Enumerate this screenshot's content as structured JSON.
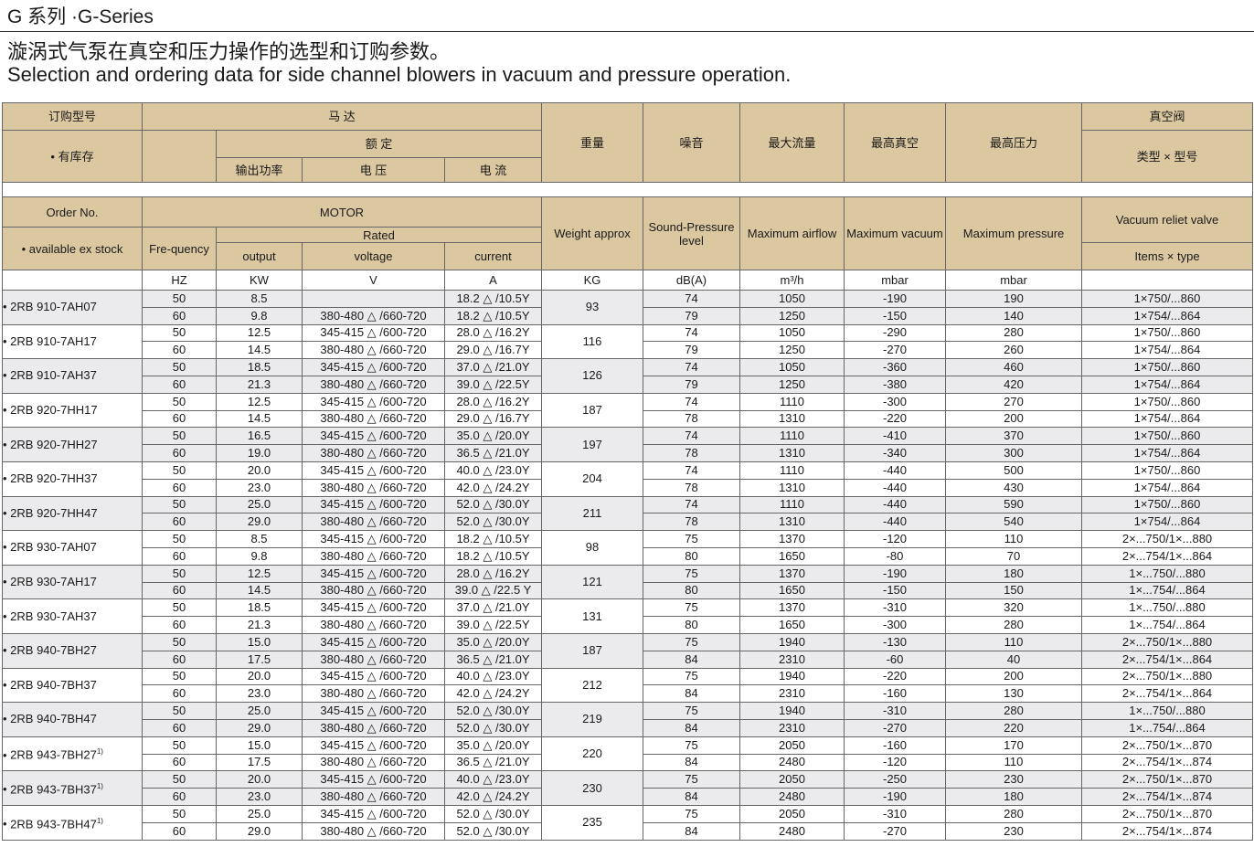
{
  "header": {
    "title": "G 系列 ·G-Series",
    "subtitle_cn": "漩涡式气泵在真空和压力操作的选型和订购参数。",
    "subtitle_en": "Selection and ordering data for side channel blowers in vacuum and pressure operation."
  },
  "header_cn": {
    "order_no": "订购型号",
    "stock": "有库存",
    "motor": "马 达",
    "rated": "额 定",
    "output": "输出功率",
    "voltage": "电 压",
    "current": "电 流",
    "weight": "重量",
    "noise": "噪音",
    "airflow": "最大流量",
    "vacuum": "最高真空",
    "pressure": "最高压力",
    "valve": "真空阀",
    "valve_type": "类型 × 型号"
  },
  "header_en": {
    "order_no": "Order No.",
    "stock": "available ex stock",
    "motor": "MOTOR",
    "frequency": "Fre-quency",
    "rated": "Rated",
    "output": "output",
    "voltage": "voltage",
    "current": "current",
    "weight": "Weight approx",
    "sound": "Sound-Pressure level",
    "airflow": "Maximum airflow",
    "vacuum": "Maximum vacuum",
    "pressure": "Maximum pressure",
    "valve": "Vacuum reliet valve",
    "valve_type": "Items × type"
  },
  "units": [
    "HZ",
    "KW",
    "V",
    "A",
    "KG",
    "dB(A)",
    "m³/h",
    "mbar",
    "mbar"
  ],
  "products": [
    {
      "name": "2RB 910-7AH07",
      "weight": "93",
      "rows": [
        [
          "50",
          "8.5",
          null,
          "18.2 △ /10.5Y",
          "74",
          "1050",
          "-190",
          "190",
          "1×750/...860"
        ],
        [
          "60",
          "9.8",
          "380-480 △ /660-720",
          "18.2 △ /10.5Y",
          "79",
          "1250",
          "-150",
          "140",
          "1×754/...864"
        ]
      ]
    },
    {
      "name": "2RB 910-7AH17",
      "weight": "116",
      "rows": [
        [
          "50",
          "12.5",
          "345-415 △ /600-720",
          "28.0 △ /16.2Y",
          "74",
          "1050",
          "-290",
          "280",
          "1×750/...860"
        ],
        [
          "60",
          "14.5",
          "380-480 △ /660-720",
          "29.0 △ /16.7Y",
          "79",
          "1250",
          "-270",
          "260",
          "1×754/...864"
        ]
      ]
    },
    {
      "name": "2RB 910-7AH37",
      "weight": "126",
      "rows": [
        [
          "50",
          "18.5",
          "345-415 △ /600-720",
          "37.0 △ /21.0Y",
          "74",
          "1050",
          "-360",
          "460",
          "1×750/...860"
        ],
        [
          "60",
          "21.3",
          "380-480 △ /660-720",
          "39.0 △ /22.5Y",
          "79",
          "1250",
          "-380",
          "420",
          "1×754/...864"
        ]
      ]
    },
    {
      "name": "2RB 920-7HH17",
      "weight": "187",
      "rows": [
        [
          "50",
          "12.5",
          "345-415 △ /600-720",
          "28.0 △ /16.2Y",
          "74",
          "1110",
          "-300",
          "270",
          "1×750/...860"
        ],
        [
          "60",
          "14.5",
          "380-480 △ /660-720",
          "29.0 △ /16.7Y",
          "78",
          "1310",
          "-220",
          "200",
          "1×754/...864"
        ]
      ]
    },
    {
      "name": "2RB 920-7HH27",
      "weight": "197",
      "rows": [
        [
          "50",
          "16.5",
          "345-415 △ /600-720",
          "35.0 △ /20.0Y",
          "74",
          "1110",
          "-410",
          "370",
          "1×750/...860"
        ],
        [
          "60",
          "19.0",
          "380-480 △ /660-720",
          "36.5 △ /21.0Y",
          "78",
          "1310",
          "-340",
          "300",
          "1×754/...864"
        ]
      ]
    },
    {
      "name": "2RB 920-7HH37",
      "weight": "204",
      "rows": [
        [
          "50",
          "20.0",
          "345-415 △ /600-720",
          "40.0 △ /23.0Y",
          "74",
          "1110",
          "-440",
          "500",
          "1×750/...860"
        ],
        [
          "60",
          "23.0",
          "380-480 △ /660-720",
          "42.0 △ /24.2Y",
          "78",
          "1310",
          "-440",
          "430",
          "1×754/...864"
        ]
      ]
    },
    {
      "name": "2RB 920-7HH47",
      "weight": "211",
      "rows": [
        [
          "50",
          "25.0",
          "345-415 △ /600-720",
          "52.0 △ /30.0Y",
          "74",
          "1110",
          "-440",
          "590",
          "1×750/...860"
        ],
        [
          "60",
          "29.0",
          "380-480 △ /660-720",
          "52.0 △ /30.0Y",
          "78",
          "1310",
          "-440",
          "540",
          "1×754/...864"
        ]
      ]
    },
    {
      "name": "2RB 930-7AH07",
      "weight": "98",
      "rows": [
        [
          "50",
          "8.5",
          "345-415 △ /600-720",
          "18.2 △ /10.5Y",
          "75",
          "1370",
          "-120",
          "110",
          "2×...750/1×...880"
        ],
        [
          "60",
          "9.8",
          "380-480 △ /660-720",
          "18.2 △ /10.5Y",
          "80",
          "1650",
          "-80",
          "70",
          "2×...754/1×...864"
        ]
      ]
    },
    {
      "name": "2RB 930-7AH17",
      "weight": "121",
      "rows": [
        [
          "50",
          "12.5",
          "345-415 △ /600-720",
          "28.0 △ /16.2Y",
          "75",
          "1370",
          "-190",
          "180",
          "1×...750/...880"
        ],
        [
          "60",
          "14.5",
          "380-480 △ /660-720",
          "39.0 △ /22.5 Y",
          "80",
          "1650",
          "-150",
          "150",
          "1×...754/...864"
        ]
      ]
    },
    {
      "name": "2RB 930-7AH37",
      "weight": "131",
      "rows": [
        [
          "50",
          "18.5",
          "345-415 △ /600-720",
          "37.0 △ /21.0Y",
          "75",
          "1370",
          "-310",
          "320",
          "1×...750/...880"
        ],
        [
          "60",
          "21.3",
          "380-480 △ /660-720",
          "39.0 △ /22.5Y",
          "80",
          "1650",
          "-300",
          "280",
          "1×...754/...864"
        ]
      ]
    },
    {
      "name": "2RB 940-7BH27",
      "weight": "187",
      "rows": [
        [
          "50",
          "15.0",
          "345-415 △ /600-720",
          "35.0 △ /20.0Y",
          "75",
          "1940",
          "-130",
          "110",
          "2×...750/1×...880"
        ],
        [
          "60",
          "17.5",
          "380-480 △ /660-720",
          "36.5 △ /21.0Y",
          "84",
          "2310",
          "-60",
          "40",
          "2×...754/1×...864"
        ]
      ]
    },
    {
      "name": "2RB 940-7BH37",
      "weight": "212",
      "rows": [
        [
          "50",
          "20.0",
          "345-415 △ /600-720",
          "40.0 △ /23.0Y",
          "75",
          "1940",
          "-220",
          "200",
          "2×...750/1×...880"
        ],
        [
          "60",
          "23.0",
          "380-480 △ /660-720",
          "42.0 △ /24.2Y",
          "84",
          "2310",
          "-160",
          "130",
          "2×...754/1×...864"
        ]
      ]
    },
    {
      "name": "2RB 940-7BH47",
      "weight": "219",
      "rows": [
        [
          "50",
          "25.0",
          "345-415 △ /600-720",
          "52.0 △ /30.0Y",
          "75",
          "1940",
          "-310",
          "280",
          "1×...750/...880"
        ],
        [
          "60",
          "29.0",
          "380-480 △ /660-720",
          "52.0 △ /30.0Y",
          "84",
          "2310",
          "-270",
          "220",
          "1×...754/...864"
        ]
      ]
    },
    {
      "name": "2RB 943-7BH27",
      "note": "1)",
      "weight": "220",
      "rows": [
        [
          "50",
          "15.0",
          "345-415 △ /600-720",
          "35.0 △ /20.0Y",
          "75",
          "2050",
          "-160",
          "170",
          "2×...750/1×...870"
        ],
        [
          "60",
          "17.5",
          "380-480 △ /660-720",
          "36.5 △ /21.0Y",
          "84",
          "2480",
          "-120",
          "110",
          "2×...754/1×...874"
        ]
      ]
    },
    {
      "name": "2RB 943-7BH37",
      "note": "1)",
      "weight": "230",
      "rows": [
        [
          "50",
          "20.0",
          "345-415 △ /600-720",
          "40.0 △ /23.0Y",
          "75",
          "2050",
          "-250",
          "230",
          "2×...750/1×...870"
        ],
        [
          "60",
          "23.0",
          "380-480 △ /660-720",
          "42.0 △ /24.2Y",
          "84",
          "2480",
          "-190",
          "180",
          "2×...754/1×...874"
        ]
      ]
    },
    {
      "name": "2RB 943-7BH47",
      "note": "1)",
      "weight": "235",
      "rows": [
        [
          "50",
          "25.0",
          "345-415 △ /600-720",
          "52.0 △ /30.0Y",
          "75",
          "2050",
          "-310",
          "280",
          "2×...750/1×...870"
        ],
        [
          "60",
          "29.0",
          "380-480 △ /660-720",
          "52.0 △ /30.0Y",
          "84",
          "2480",
          "-270",
          "230",
          "2×...754/1×...874"
        ]
      ]
    }
  ]
}
